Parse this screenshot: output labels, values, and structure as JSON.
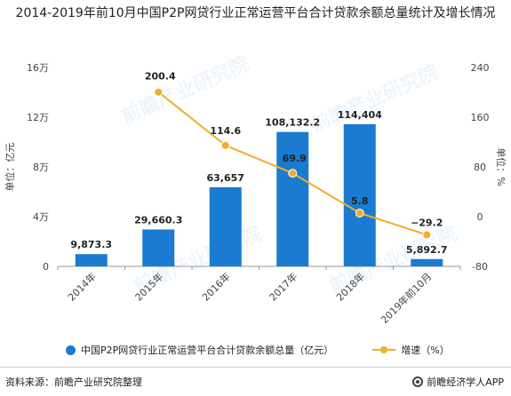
{
  "title": "2014-2019年前10月中国P2P网贷行业正常运营平台合计贷款余额总量统计及增长情况",
  "chart_data": {
    "type": "bar",
    "categories": [
      "2014年",
      "2015年",
      "2016年",
      "2017年",
      "2018年",
      "2019年前10月"
    ],
    "series": [
      {
        "name": "中国P2P网贷行业正常运营平台合计贷款余额总量（亿元）",
        "type": "bar",
        "axis": "left",
        "values": [
          9873.3,
          29660.3,
          63657,
          108132.2,
          114404,
          5892.7
        ],
        "labels": [
          "9,873.3",
          "29,660.3",
          "63,657",
          "108,132.2",
          "114,404",
          "5,892.7"
        ],
        "color": "#1a7bd1"
      },
      {
        "name": "增速（%）",
        "type": "line",
        "axis": "right",
        "values": [
          null,
          200.4,
          114.6,
          69.9,
          5.8,
          -29.2
        ],
        "labels": [
          "",
          "200.4",
          "114.6",
          "69.9",
          "5.8",
          "−29.2"
        ],
        "color": "#f0ad2e"
      }
    ],
    "y_left": {
      "label": "单位：亿元",
      "ylim": [
        0,
        160000
      ],
      "ticks": [
        0,
        40000,
        80000,
        120000,
        160000
      ],
      "tick_labels": [
        "0",
        "4万",
        "8万",
        "12万",
        "16万"
      ]
    },
    "y_right": {
      "label": "单位：%",
      "ylim": [
        -80,
        240
      ],
      "ticks": [
        -80,
        0,
        80,
        160,
        240
      ],
      "tick_labels": [
        "-80",
        "0",
        "80",
        "160",
        "240"
      ]
    },
    "grid": false,
    "legend": "bottom"
  },
  "footer": {
    "source": "资料来源：前瞻产业研究院整理",
    "brand": "前瞻经济学人APP"
  }
}
